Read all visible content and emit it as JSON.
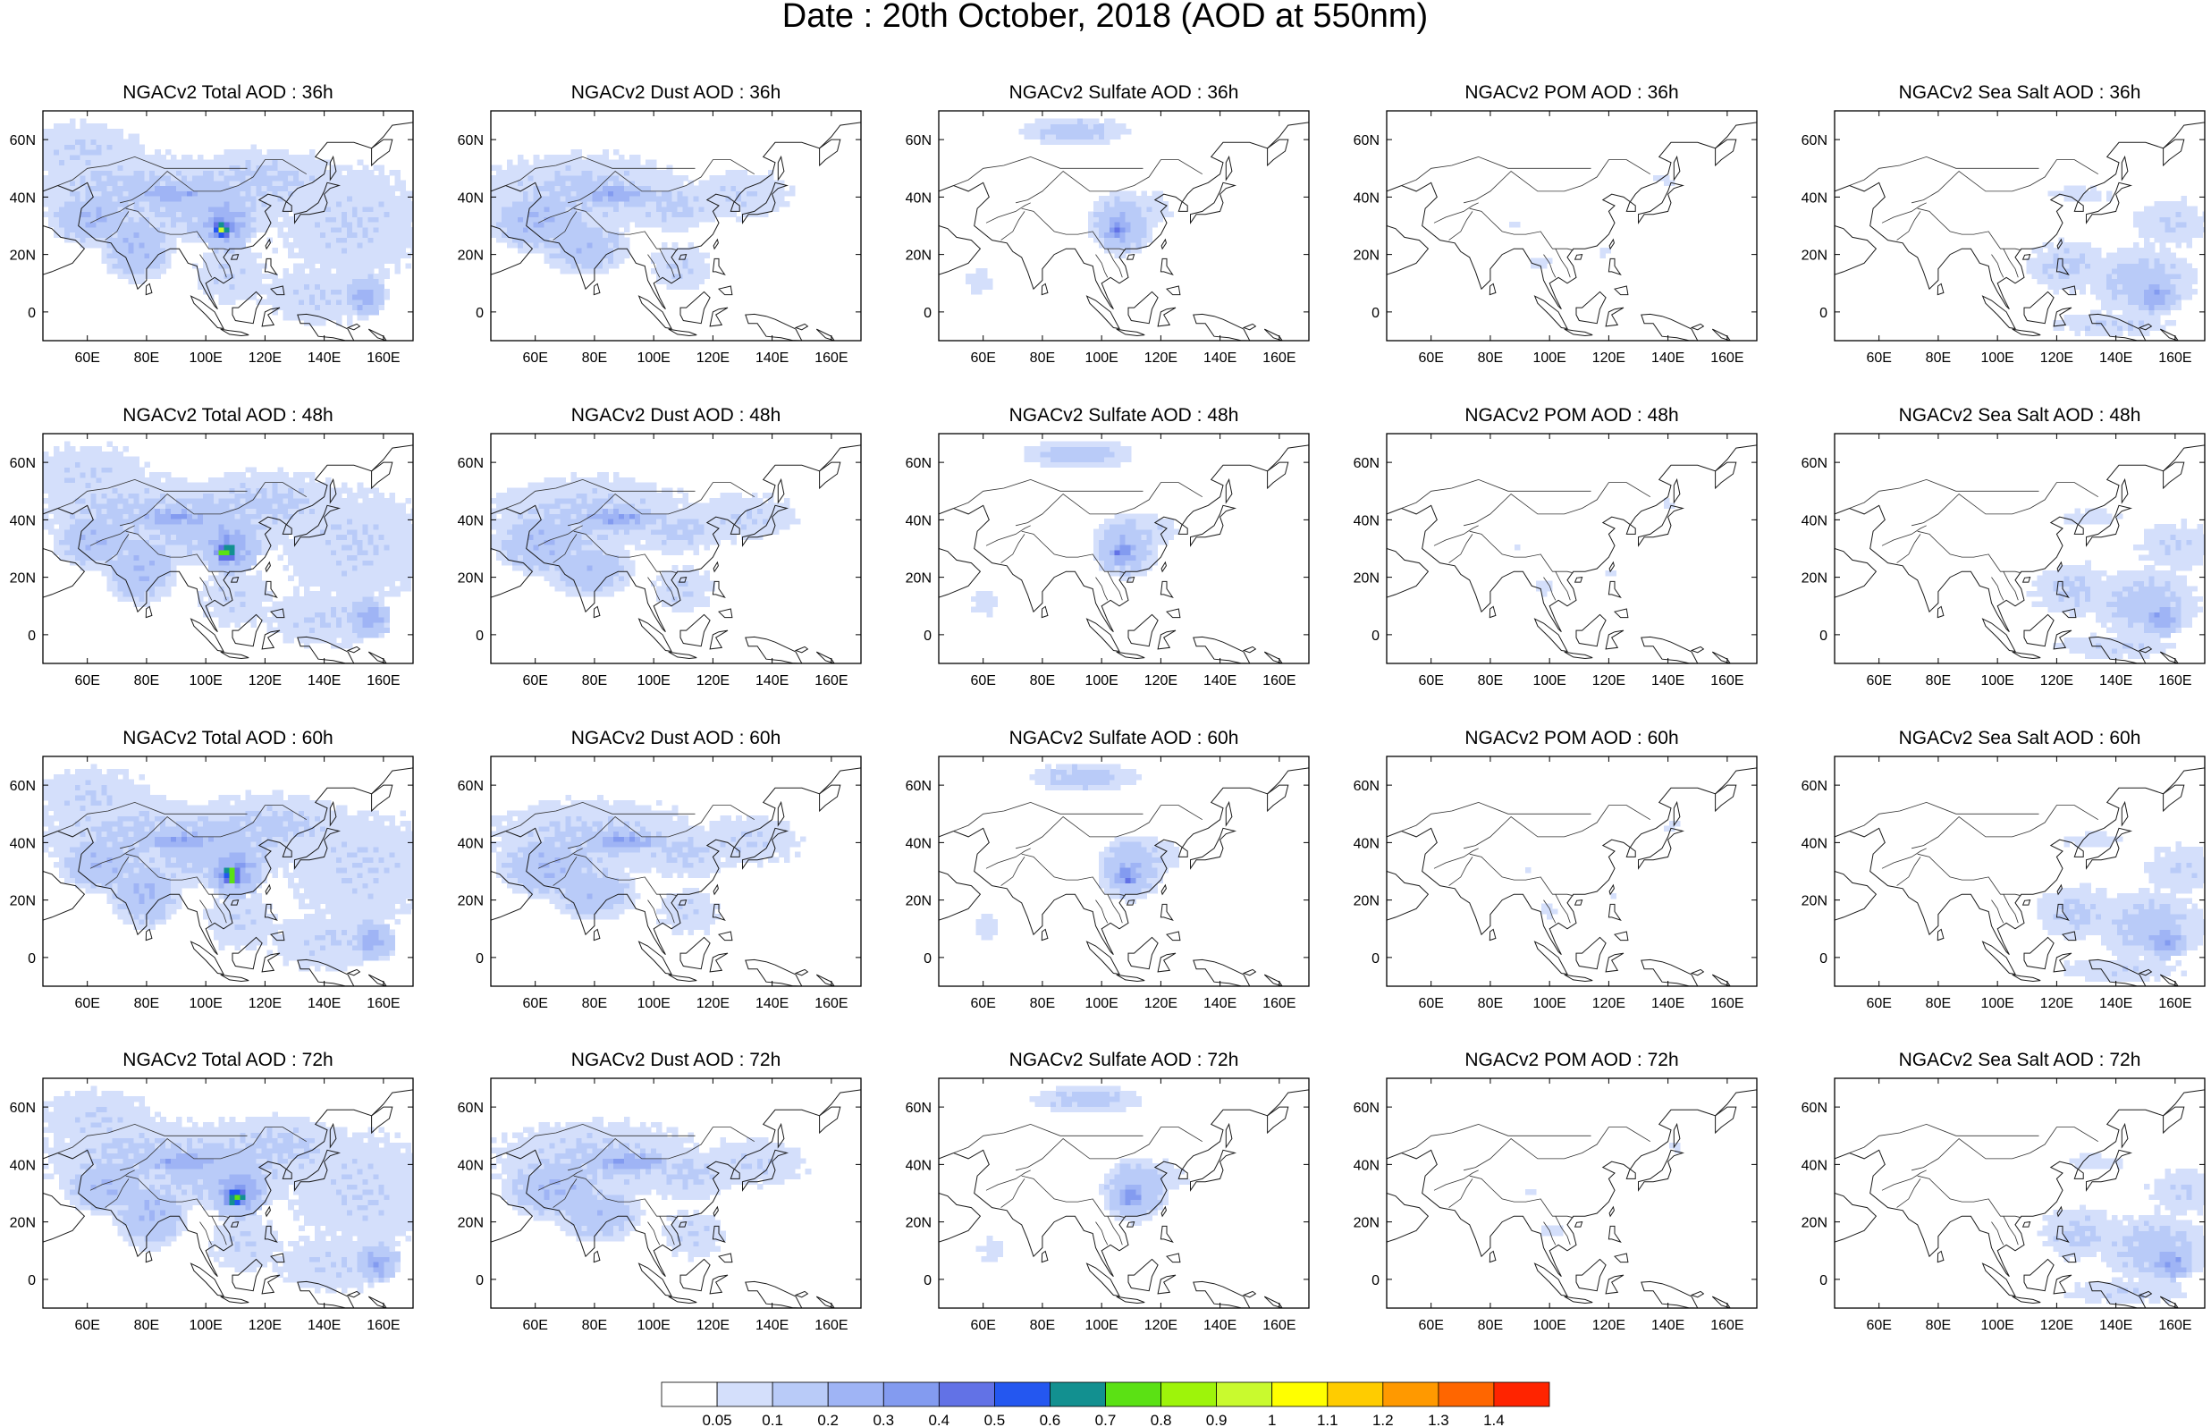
{
  "figure": {
    "title": "Date : 20th October, 2018 (AOD at 550nm)"
  },
  "panels": {
    "rows": [
      [
        "NGACv2 Total AOD : 36h",
        "NGACv2 Dust AOD : 36h",
        "NGACv2 Sulfate AOD : 36h",
        "NGACv2 POM AOD : 36h",
        "NGACv2 Sea Salt AOD : 36h"
      ],
      [
        "NGACv2 Total AOD : 48h",
        "NGACv2 Dust AOD : 48h",
        "NGACv2 Sulfate AOD : 48h",
        "NGACv2 POM AOD : 48h",
        "NGACv2 Sea Salt AOD : 48h"
      ],
      [
        "NGACv2 Total AOD : 60h",
        "NGACv2 Dust AOD : 60h",
        "NGACv2 Sulfate AOD : 60h",
        "NGACv2 POM AOD : 60h",
        "NGACv2 Sea Salt AOD : 60h"
      ],
      [
        "NGACv2 Total AOD : 72h",
        "NGACv2 Dust AOD : 72h",
        "NGACv2 Sulfate AOD : 72h",
        "NGACv2 POM AOD : 72h",
        "NGACv2 Sea Salt  AOD : 72h"
      ]
    ],
    "x_ticks": [
      "60E",
      "80E",
      "100E",
      "120E",
      "140E",
      "160E"
    ],
    "y_ticks": [
      "60N",
      "40N",
      "20N",
      "0"
    ]
  },
  "map_extent": {
    "lon": [
      45,
      170
    ],
    "lat": [
      -10,
      70
    ]
  },
  "colorbar": {
    "labels": [
      "0.05",
      "0.1",
      "0.2",
      "0.3",
      "0.4",
      "0.5",
      "0.6",
      "0.7",
      "0.8",
      "0.9",
      "1",
      "1.1",
      "1.2",
      "1.3",
      "1.4"
    ],
    "colors": [
      "#ffffff",
      "#d4dffb",
      "#b9cbf8",
      "#9fb4f5",
      "#839bf0",
      "#6272e6",
      "#2457f0",
      "#129090",
      "#5be114",
      "#9ef40a",
      "#c9fa2e",
      "#ffff00",
      "#ffcc00",
      "#ff9900",
      "#ff6600",
      "#ff2400"
    ]
  }
}
